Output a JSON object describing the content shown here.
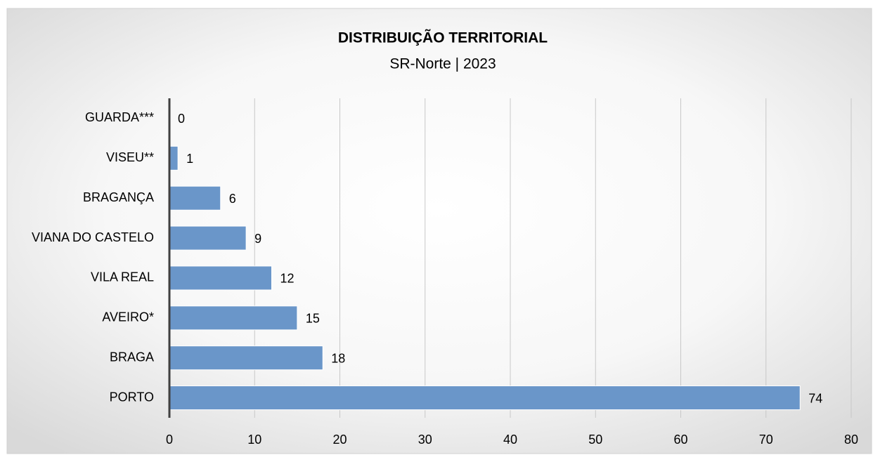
{
  "chart_data": {
    "type": "barh",
    "title": "DISTRIBUIÇÃO TERRITORIAL",
    "subtitle": "SR-Norte | 2023",
    "categories": [
      "GUARDA***",
      "VISEU**",
      "BRAGANÇA",
      "VIANA DO CASTELO",
      "VILA REAL",
      "AVEIRO*",
      "BRAGA",
      "PORTO"
    ],
    "values": [
      0,
      1,
      6,
      9,
      12,
      15,
      18,
      74
    ],
    "color": "#6a96c9",
    "xlim": [
      0,
      80
    ],
    "xticks": [
      0,
      10,
      20,
      30,
      40,
      50,
      60,
      70,
      80
    ],
    "grid": true
  }
}
